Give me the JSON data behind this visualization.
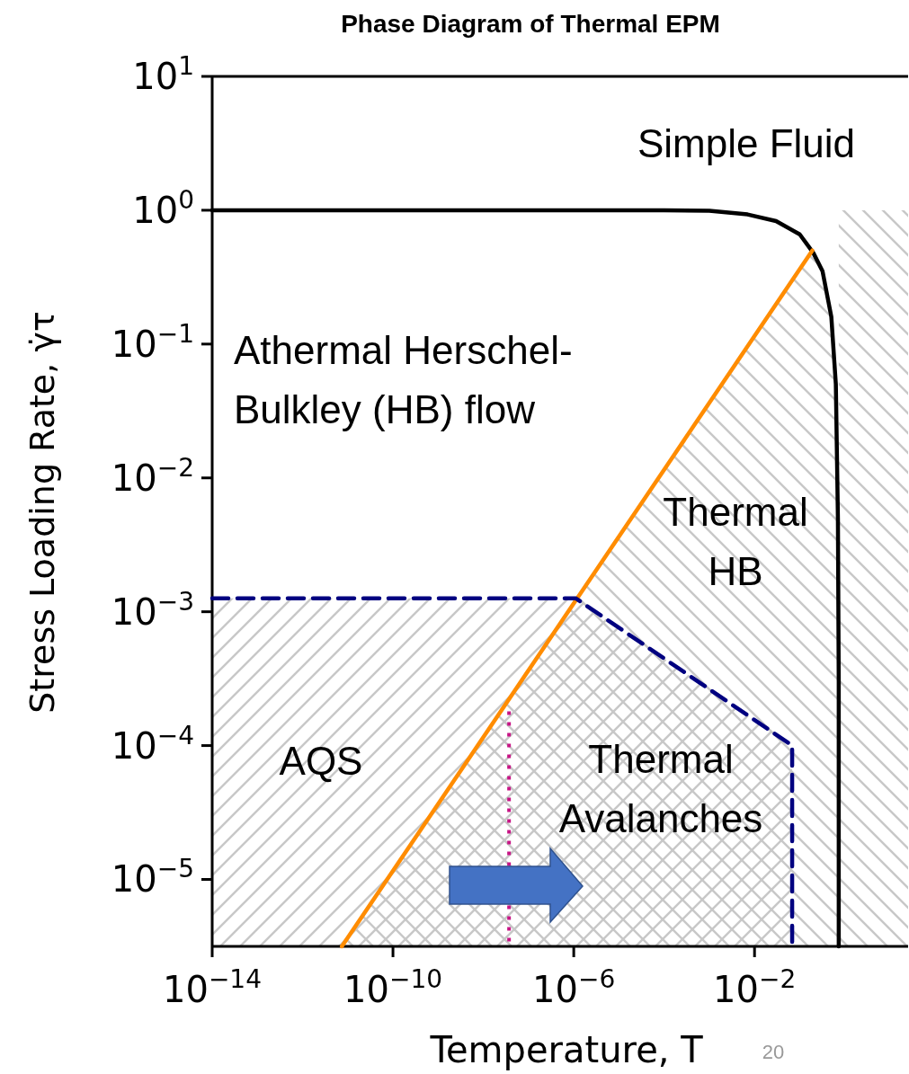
{
  "chart_data": {
    "type": "line",
    "title": "Phase Diagram of Thermal EPM",
    "xlabel": "Temperature, T",
    "ylabel": "Stress Loading Rate,  γ̇τ",
    "log": "xy",
    "xlim": [
      1e-14,
      25
    ],
    "ylim": [
      3.16e-06,
      10
    ],
    "xticks": [
      {
        "value": 1e-14,
        "label": "10$^{−14}$"
      },
      {
        "value": 1e-10,
        "label": "10$^{−10}$"
      },
      {
        "value": 1e-06,
        "label": "10$^{−6}$"
      },
      {
        "value": 0.01,
        "label": "10$^{−2}$"
      }
    ],
    "yticks": [
      {
        "value": 1e-05,
        "label": "10$^{−5}$"
      },
      {
        "value": 0.0001,
        "label": "10$^{−4}$"
      },
      {
        "value": 0.001,
        "label": "10$^{−3}$"
      },
      {
        "value": 0.01,
        "label": "10$^{−2}$"
      },
      {
        "value": 0.1,
        "label": "10$^{−1}$"
      },
      {
        "value": 1,
        "label": "10$^{0}$"
      },
      {
        "value": 10,
        "label": "10$^{1}$"
      }
    ],
    "series": [
      {
        "color": "#000000",
        "line_style": "solid",
        "x": [
          1e-14,
          0.0001,
          0.001,
          0.007,
          0.03,
          0.1,
          0.2,
          0.32,
          0.5,
          0.63,
          0.7,
          0.73,
          0.73
        ],
        "values": [
          1,
          1,
          0.99,
          0.93,
          0.83,
          0.66,
          0.48,
          0.35,
          0.16,
          0.05,
          0.005,
          0.0003,
          3.16e-06
        ]
      },
      {
        "color": "#ff8c00",
        "line_style": "solid",
        "x": [
          7.4e-12,
          0.19
        ],
        "values": [
          3.16e-06,
          0.5
        ]
      },
      {
        "color": "#000080",
        "line_style": "dashed",
        "x": [
          1e-14,
          1.1e-06,
          0.068,
          0.068
        ],
        "values": [
          0.00126,
          0.00126,
          0.0001,
          3.16e-06
        ]
      },
      {
        "color": "#c71585",
        "line_style": "dotted",
        "x": [
          3.7e-08,
          3.7e-08
        ],
        "values": [
          0.00018,
          3.16e-06
        ]
      }
    ],
    "annotations": [
      "Simple Fluid",
      "Athermal Herschel-\nBulkley (HB) flow",
      "Thermal\nHB",
      "AQS",
      "Thermal\nAvalanches",
      "20"
    ]
  }
}
